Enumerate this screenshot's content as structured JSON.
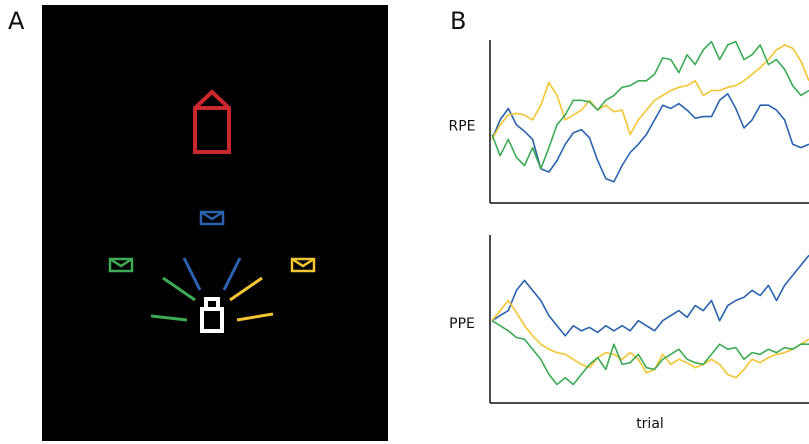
{
  "panel_labels": [
    "A",
    "B"
  ],
  "chart_data": [
    {
      "type": "line",
      "y_label": "RPE",
      "ylim": [
        0,
        100
      ],
      "series": [
        {
          "color": "#2a62ad",
          "values": [
            39,
            51,
            58,
            48,
            44,
            39,
            21,
            19,
            26,
            36,
            43,
            45,
            40,
            26,
            15,
            13,
            23,
            31,
            36,
            42,
            51,
            60,
            58,
            61,
            57,
            52,
            53,
            53,
            63,
            67,
            58,
            46,
            51,
            60,
            60,
            57,
            51,
            36,
            34,
            36
          ]
        },
        {
          "color": "#f3c532",
          "values": [
            39,
            48,
            54,
            55,
            54,
            51,
            60,
            74,
            66,
            51,
            54,
            57,
            63,
            57,
            60,
            56,
            57,
            42,
            51,
            57,
            63,
            66,
            69,
            71,
            72,
            75,
            66,
            69,
            69,
            71,
            72,
            75,
            79,
            83,
            88,
            94,
            97,
            95,
            87,
            75
          ]
        },
        {
          "color": "#3daa55",
          "values": [
            42,
            29,
            39,
            28,
            23,
            34,
            21,
            34,
            48,
            54,
            63,
            63,
            62,
            57,
            63,
            66,
            71,
            72,
            75,
            75,
            79,
            89,
            88,
            80,
            91,
            85,
            94,
            99,
            88,
            97,
            99,
            88,
            91,
            97,
            85,
            88,
            82,
            72,
            66,
            69
          ]
        }
      ]
    },
    {
      "type": "line",
      "y_label": "PPE",
      "x_label": "trial",
      "ylim": [
        0,
        100
      ],
      "series": [
        {
          "color": "#2a62ad",
          "values": [
            49,
            52,
            55,
            67,
            73,
            67,
            61,
            52,
            46,
            40,
            46,
            43,
            45,
            42,
            46,
            43,
            46,
            43,
            49,
            46,
            43,
            49,
            52,
            55,
            51,
            58,
            55,
            61,
            49,
            58,
            61,
            63,
            67,
            64,
            70,
            61,
            70,
            76,
            82,
            88
          ]
        },
        {
          "color": "#f3c532",
          "values": [
            49,
            55,
            61,
            54,
            46,
            40,
            35,
            32,
            30,
            29,
            26,
            23,
            21,
            27,
            30,
            29,
            26,
            30,
            26,
            18,
            20,
            29,
            23,
            26,
            24,
            21,
            23,
            26,
            23,
            17,
            15,
            20,
            26,
            24,
            27,
            29,
            30,
            32,
            35,
            38
          ]
        },
        {
          "color": "#3daa55",
          "values": [
            49,
            46,
            43,
            39,
            38,
            32,
            26,
            17,
            11,
            15,
            11,
            17,
            23,
            27,
            20,
            35,
            23,
            24,
            29,
            21,
            20,
            26,
            29,
            32,
            26,
            24,
            23,
            29,
            35,
            32,
            33,
            26,
            30,
            29,
            32,
            30,
            33,
            32,
            35,
            35
          ]
        }
      ]
    }
  ]
}
